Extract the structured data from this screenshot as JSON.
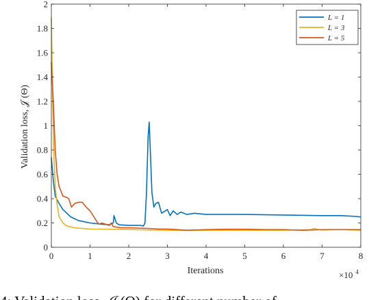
{
  "chart_data": {
    "type": "line",
    "xlabel": "Iterations",
    "ylabel": "Validation loss, 𝒥 (Θ)",
    "x_multiplier_label": "×10",
    "x_multiplier_exp": "4",
    "xlim": [
      0,
      8
    ],
    "ylim": [
      0,
      2
    ],
    "x_ticks": [
      0,
      1,
      2,
      3,
      4,
      5,
      6,
      7,
      8
    ],
    "y_ticks": [
      0,
      0.2,
      0.4,
      0.6,
      0.8,
      1,
      1.2,
      1.4,
      1.6,
      1.8,
      2
    ],
    "grid": false,
    "legend_position": "top-right",
    "series": [
      {
        "name": "L = 1",
        "color": "#0072BD",
        "points": [
          [
            0,
            0.74
          ],
          [
            0.05,
            0.55
          ],
          [
            0.1,
            0.42
          ],
          [
            0.2,
            0.36
          ],
          [
            0.3,
            0.31
          ],
          [
            0.5,
            0.25
          ],
          [
            0.7,
            0.22
          ],
          [
            1.0,
            0.2
          ],
          [
            1.3,
            0.19
          ],
          [
            1.5,
            0.185
          ],
          [
            1.6,
            0.2
          ],
          [
            1.62,
            0.26
          ],
          [
            1.68,
            0.2
          ],
          [
            1.75,
            0.185
          ],
          [
            2.0,
            0.18
          ],
          [
            2.3,
            0.18
          ],
          [
            2.38,
            0.175
          ],
          [
            2.42,
            0.2
          ],
          [
            2.46,
            0.45
          ],
          [
            2.5,
            0.9
          ],
          [
            2.53,
            1.03
          ],
          [
            2.57,
            0.7
          ],
          [
            2.6,
            0.45
          ],
          [
            2.65,
            0.33
          ],
          [
            2.7,
            0.36
          ],
          [
            2.77,
            0.37
          ],
          [
            2.85,
            0.28
          ],
          [
            2.9,
            0.29
          ],
          [
            3.0,
            0.31
          ],
          [
            3.07,
            0.26
          ],
          [
            3.15,
            0.3
          ],
          [
            3.25,
            0.27
          ],
          [
            3.35,
            0.29
          ],
          [
            3.5,
            0.27
          ],
          [
            3.7,
            0.28
          ],
          [
            4.0,
            0.27
          ],
          [
            5.0,
            0.27
          ],
          [
            6.0,
            0.265
          ],
          [
            7.0,
            0.26
          ],
          [
            7.5,
            0.26
          ],
          [
            7.8,
            0.255
          ],
          [
            8.0,
            0.25
          ]
        ]
      },
      {
        "name": "L = 3",
        "color": "#EDB120",
        "points": [
          [
            0,
            1.89
          ],
          [
            0.03,
            1.3
          ],
          [
            0.06,
            0.8
          ],
          [
            0.1,
            0.5
          ],
          [
            0.15,
            0.35
          ],
          [
            0.2,
            0.25
          ],
          [
            0.3,
            0.2
          ],
          [
            0.4,
            0.175
          ],
          [
            0.6,
            0.16
          ],
          [
            0.8,
            0.155
          ],
          [
            1.0,
            0.15
          ],
          [
            1.5,
            0.148
          ],
          [
            2.0,
            0.145
          ],
          [
            3.0,
            0.14
          ],
          [
            4.0,
            0.14
          ],
          [
            5.0,
            0.14
          ],
          [
            6.0,
            0.14
          ],
          [
            6.7,
            0.145
          ],
          [
            6.8,
            0.155
          ],
          [
            6.9,
            0.145
          ],
          [
            7.0,
            0.142
          ],
          [
            7.5,
            0.145
          ],
          [
            8.0,
            0.14
          ]
        ]
      },
      {
        "name": "L = 5",
        "color": "#D95319",
        "points": [
          [
            0,
            1.52
          ],
          [
            0.05,
            1.2
          ],
          [
            0.1,
            0.8
          ],
          [
            0.15,
            0.6
          ],
          [
            0.2,
            0.5
          ],
          [
            0.3,
            0.42
          ],
          [
            0.4,
            0.41
          ],
          [
            0.45,
            0.4
          ],
          [
            0.5,
            0.35
          ],
          [
            0.52,
            0.33
          ],
          [
            0.6,
            0.36
          ],
          [
            0.7,
            0.37
          ],
          [
            0.8,
            0.37
          ],
          [
            0.9,
            0.33
          ],
          [
            1.0,
            0.3
          ],
          [
            1.1,
            0.25
          ],
          [
            1.2,
            0.2
          ],
          [
            1.25,
            0.19
          ],
          [
            1.3,
            0.2
          ],
          [
            1.4,
            0.19
          ],
          [
            1.5,
            0.18
          ],
          [
            1.55,
            0.2
          ],
          [
            1.6,
            0.17
          ],
          [
            1.7,
            0.165
          ],
          [
            1.8,
            0.16
          ],
          [
            2.0,
            0.16
          ],
          [
            2.5,
            0.155
          ],
          [
            2.8,
            0.15
          ],
          [
            3.0,
            0.15
          ],
          [
            3.5,
            0.14
          ],
          [
            4.0,
            0.145
          ],
          [
            4.5,
            0.148
          ],
          [
            5.0,
            0.148
          ],
          [
            5.5,
            0.145
          ],
          [
            6.0,
            0.145
          ],
          [
            6.5,
            0.14
          ],
          [
            7.0,
            0.145
          ],
          [
            7.5,
            0.145
          ],
          [
            8.0,
            0.145
          ]
        ]
      }
    ]
  },
  "caption": "4: Validation loss, 𝒥 (Θ) for different number of"
}
